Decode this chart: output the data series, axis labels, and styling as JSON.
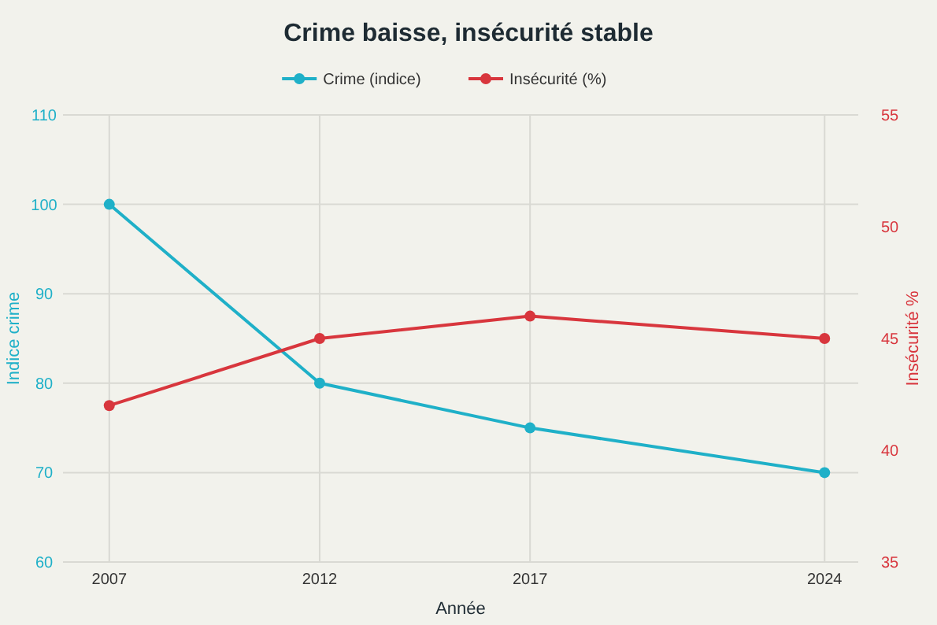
{
  "chart_data": {
    "type": "line",
    "title": "Crime baisse, insécurité stable",
    "xlabel": "Année",
    "ylabel": "Indice crime",
    "y2label": "Insécurité %",
    "x": [
      2007,
      2012,
      2017,
      2024
    ],
    "series": [
      {
        "name": "Crime (indice)",
        "color": "#1fb0c8",
        "values": [
          100,
          80,
          75,
          70
        ]
      },
      {
        "name": "Insécurité (%)",
        "color": "#d8363d",
        "values": [
          42,
          45,
          46,
          45
        ],
        "axis": "y2"
      }
    ],
    "xlim": [
      2005.9,
      2024.8
    ],
    "xticks": [
      2007,
      2012,
      2017,
      2024
    ],
    "ylim": [
      60,
      110
    ],
    "yticks": [
      60,
      70,
      80,
      90,
      100,
      110
    ],
    "y2lim": [
      35,
      55
    ],
    "y2ticks": [
      35,
      40,
      45,
      50,
      55
    ],
    "grid": true,
    "legend": "top",
    "marker": "circle",
    "line_style": "solid"
  }
}
